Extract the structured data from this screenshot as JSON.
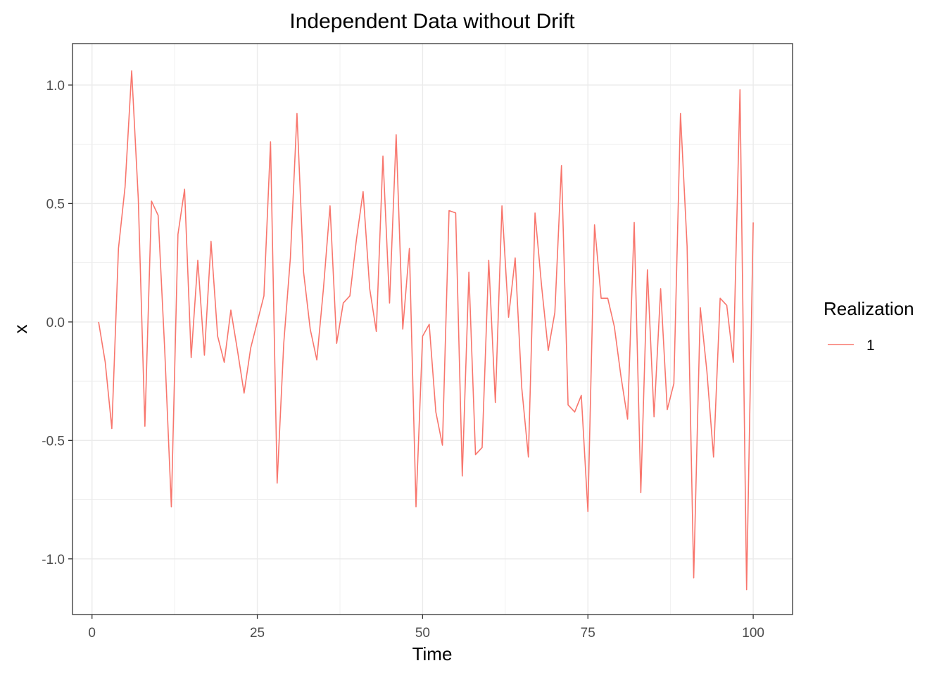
{
  "chart_data": {
    "type": "line",
    "title": "Independent Data without Drift",
    "xlabel": "Time",
    "ylabel": "x",
    "xlim": [
      -2.95,
      105.95
    ],
    "ylim": [
      -1.235,
      1.175
    ],
    "x_ticks": [
      0,
      25,
      50,
      75,
      100
    ],
    "x_tick_labels": [
      "0",
      "25",
      "50",
      "75",
      "100"
    ],
    "x_minor": [
      12.5,
      37.5,
      62.5,
      87.5
    ],
    "y_ticks": [
      -1.0,
      -0.5,
      0.0,
      0.5,
      1.0
    ],
    "y_tick_labels": [
      "-1.0",
      "-0.5",
      "0.0",
      "0.5",
      "1.0"
    ],
    "y_minor": [
      -0.75,
      -0.25,
      0.25,
      0.75
    ],
    "grid": true,
    "legend": {
      "title": "Realization",
      "placement": "right"
    },
    "colors": {
      "line": "#f8766d",
      "grid": "#ebebeb",
      "panel_border": "#333333",
      "background": "#ffffff"
    },
    "series": [
      {
        "name": "1",
        "x": [
          1,
          2,
          3,
          4,
          5,
          6,
          7,
          8,
          9,
          10,
          11,
          12,
          13,
          14,
          15,
          16,
          17,
          18,
          19,
          20,
          21,
          22,
          23,
          24,
          25,
          26,
          27,
          28,
          29,
          30,
          31,
          32,
          33,
          34,
          35,
          36,
          37,
          38,
          39,
          40,
          41,
          42,
          43,
          44,
          45,
          46,
          47,
          48,
          49,
          50,
          51,
          52,
          53,
          54,
          55,
          56,
          57,
          58,
          59,
          60,
          61,
          62,
          63,
          64,
          65,
          66,
          67,
          68,
          69,
          70,
          71,
          72,
          73,
          74,
          75,
          76,
          77,
          78,
          79,
          80,
          81,
          82,
          83,
          84,
          85,
          86,
          87,
          88,
          89,
          90,
          91,
          92,
          93,
          94,
          95,
          96,
          97,
          98,
          99,
          100
        ],
        "values": [
          0.0,
          -0.17,
          -0.45,
          0.31,
          0.57,
          1.06,
          0.52,
          -0.44,
          0.51,
          0.45,
          -0.12,
          -0.78,
          0.37,
          0.56,
          -0.15,
          0.26,
          -0.14,
          0.34,
          -0.06,
          -0.17,
          0.05,
          -0.12,
          -0.3,
          -0.11,
          -0.0,
          0.11,
          0.76,
          -0.68,
          -0.09,
          0.27,
          0.88,
          0.21,
          -0.03,
          -0.16,
          0.14,
          0.49,
          -0.09,
          0.08,
          0.11,
          0.35,
          0.55,
          0.14,
          -0.04,
          0.7,
          0.08,
          0.79,
          -0.03,
          0.31,
          -0.78,
          -0.06,
          -0.01,
          -0.38,
          -0.52,
          0.47,
          0.46,
          -0.65,
          0.21,
          -0.56,
          -0.53,
          0.26,
          -0.34,
          0.49,
          0.02,
          0.27,
          -0.28,
          -0.57,
          0.46,
          0.15,
          -0.12,
          0.04,
          0.66,
          -0.35,
          -0.38,
          -0.31,
          -0.8,
          0.41,
          0.1,
          0.1,
          -0.02,
          -0.23,
          -0.41,
          0.42,
          -0.72,
          0.22,
          -0.4,
          0.14,
          -0.37,
          -0.26,
          0.88,
          0.32,
          -1.08,
          0.06,
          -0.21,
          -0.57,
          0.1,
          0.07,
          -0.17,
          0.98,
          -1.13,
          0.42
        ]
      }
    ]
  }
}
